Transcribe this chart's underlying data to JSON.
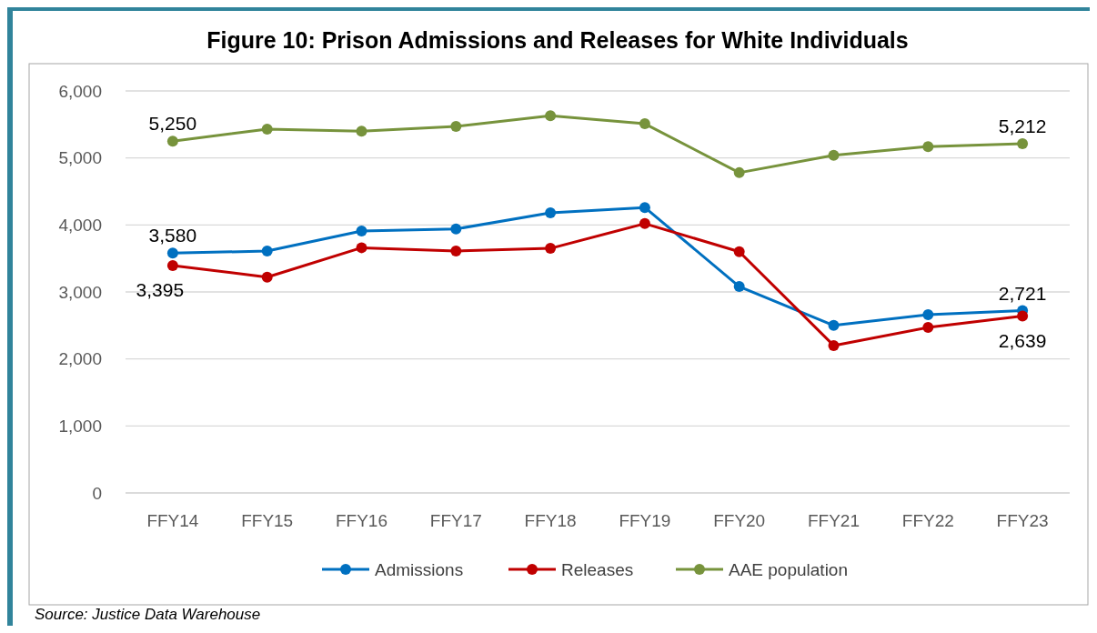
{
  "chart_data": {
    "type": "line",
    "title": "Figure 10: Prison Admissions and Releases for White Individuals",
    "categories": [
      "FFY14",
      "FFY15",
      "FFY16",
      "FFY17",
      "FFY18",
      "FFY19",
      "FFY20",
      "FFY21",
      "FFY22",
      "FFY23"
    ],
    "series": [
      {
        "name": "Admissions",
        "color": "#0070c0",
        "values": [
          3580,
          3610,
          3910,
          3940,
          4180,
          4260,
          3080,
          2500,
          2660,
          2721
        ],
        "value_labels": [
          "3,580",
          null,
          null,
          null,
          null,
          null,
          null,
          null,
          null,
          "2,721"
        ]
      },
      {
        "name": "Releases",
        "color": "#c00000",
        "values": [
          3395,
          3220,
          3660,
          3610,
          3650,
          4020,
          3600,
          2200,
          2470,
          2639
        ],
        "value_labels": [
          "3,395",
          null,
          null,
          null,
          null,
          null,
          null,
          null,
          null,
          "2,639"
        ]
      },
      {
        "name": "AAE population",
        "color": "#77933c",
        "values": [
          5250,
          5430,
          5400,
          5470,
          5630,
          5510,
          4780,
          5040,
          5170,
          5212
        ],
        "value_labels": [
          "5,250",
          null,
          null,
          null,
          null,
          null,
          null,
          null,
          null,
          "5,212"
        ]
      }
    ],
    "ylim": [
      0,
      6000
    ],
    "yticks": [
      {
        "value": 0,
        "label": "0"
      },
      {
        "value": 1000,
        "label": "1,000"
      },
      {
        "value": 2000,
        "label": "2,000"
      },
      {
        "value": 3000,
        "label": "3,000"
      },
      {
        "value": 4000,
        "label": "4,000"
      },
      {
        "value": 5000,
        "label": "5,000"
      },
      {
        "value": 6000,
        "label": "6,000"
      }
    ],
    "grid": "y",
    "legend": "bottom",
    "marker": "circle",
    "line_style": "solid",
    "annotations": [
      "Source: Justice Data Warehouse"
    ]
  }
}
